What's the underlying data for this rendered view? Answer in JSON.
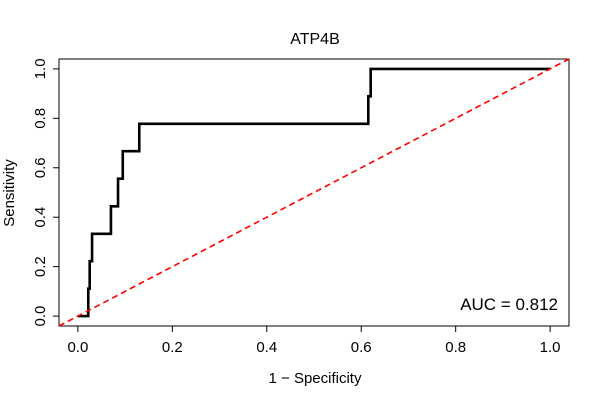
{
  "chart_data": {
    "type": "line",
    "title": "ATP4B",
    "xlabel": "1 − Specificity",
    "ylabel": "Sensitivity",
    "xlim": [
      -0.04,
      1.04
    ],
    "ylim": [
      -0.04,
      1.04
    ],
    "x_ticks": [
      0.0,
      0.2,
      0.4,
      0.6,
      0.8,
      1.0
    ],
    "x_tick_labels": [
      "0.0",
      "0.2",
      "0.4",
      "0.6",
      "0.8",
      "1.0"
    ],
    "y_ticks": [
      0.0,
      0.2,
      0.4,
      0.6,
      0.8,
      1.0
    ],
    "y_tick_labels": [
      "0.0",
      "0.2",
      "0.4",
      "0.6",
      "0.8",
      "1.0"
    ],
    "grid": false,
    "annotation": "AUC = 0.812",
    "series": [
      {
        "style": "solid",
        "color": "#000000",
        "x": [
          0.0,
          0.022,
          0.022,
          0.025,
          0.025,
          0.03,
          0.03,
          0.07,
          0.07,
          0.085,
          0.085,
          0.095,
          0.095,
          0.13,
          0.13,
          0.615,
          0.615,
          0.62,
          0.62,
          1.0
        ],
        "y": [
          0.0,
          0.0,
          0.111,
          0.111,
          0.222,
          0.222,
          0.333,
          0.333,
          0.444,
          0.444,
          0.556,
          0.556,
          0.667,
          0.667,
          0.778,
          0.778,
          0.889,
          0.889,
          1.0,
          1.0
        ]
      },
      {
        "style": "dashed",
        "color": "#ff0000",
        "x": [
          -0.04,
          1.04
        ],
        "y": [
          -0.04,
          1.04
        ]
      }
    ]
  }
}
